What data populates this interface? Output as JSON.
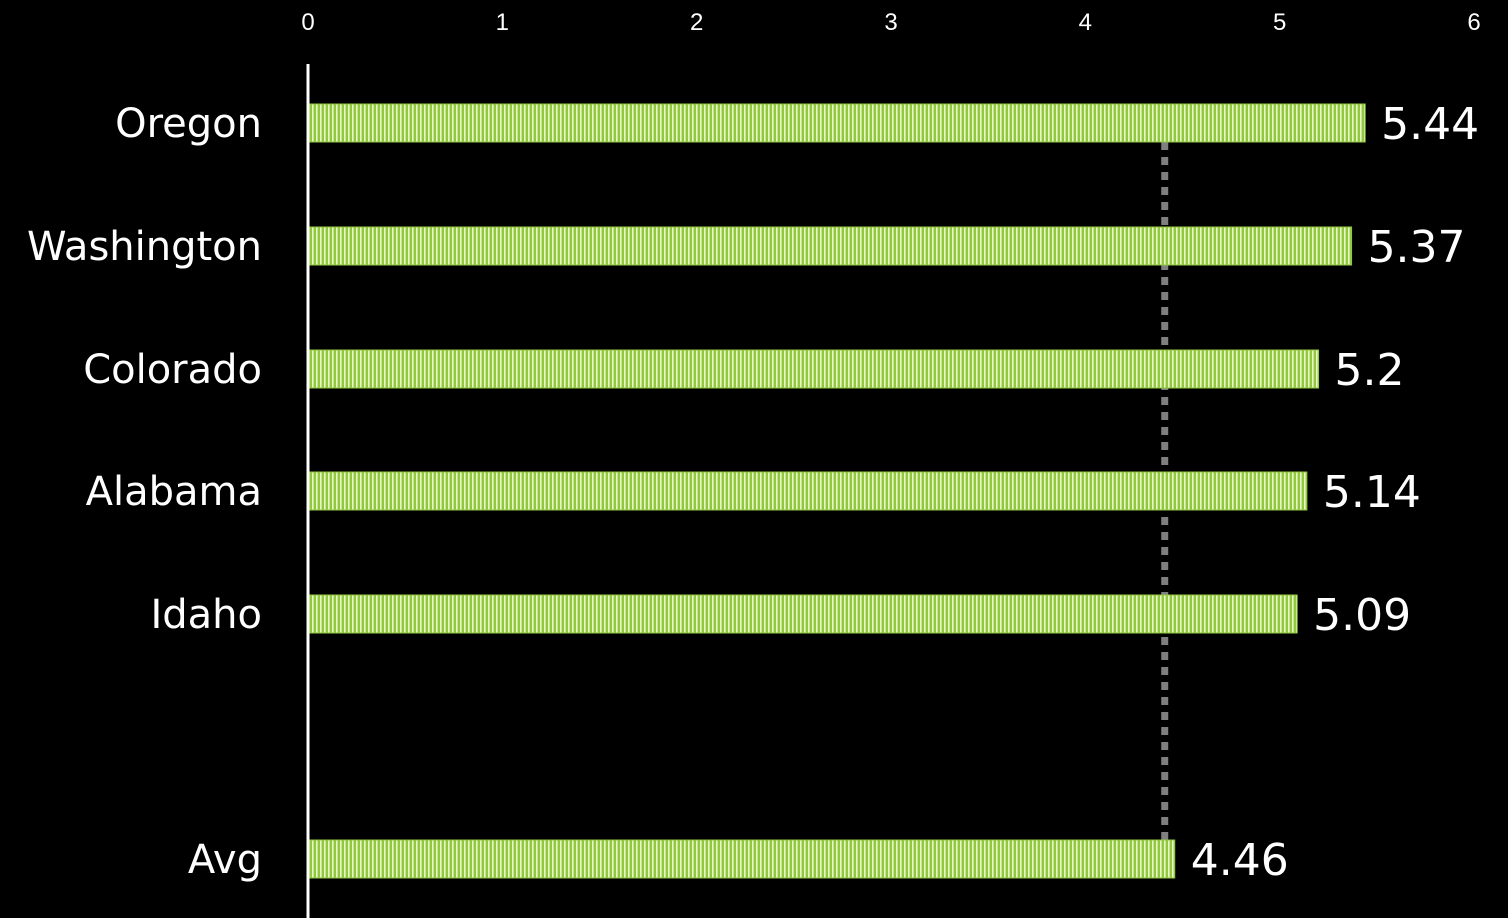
{
  "chart_data": {
    "type": "bar",
    "orientation": "horizontal",
    "categories": [
      "Oregon",
      "Washington",
      "Colorado",
      "Alabama",
      "Idaho",
      "Avg"
    ],
    "values": [
      5.44,
      5.37,
      5.2,
      5.14,
      5.09,
      4.46
    ],
    "value_labels": [
      "5.44",
      "5.37",
      "5.2",
      "5.14",
      "5.09",
      "4.46"
    ],
    "xlim": [
      0,
      6
    ],
    "x_ticks": [
      "0",
      "1",
      "2",
      "3",
      "4",
      "5",
      "6"
    ],
    "x_axis_position": "top",
    "reference_line": {
      "value": 4.46,
      "style": "dotted",
      "color": "#7f7f7f"
    },
    "grid": false,
    "legend": "none",
    "title": "",
    "xlabel": "",
    "ylabel": ""
  },
  "colors": {
    "background": "#000000",
    "bar_fill": "#92c83e",
    "bar_stripe": "#e8f5c8",
    "axis_line": "#ffffff",
    "text": "#ffffff"
  }
}
